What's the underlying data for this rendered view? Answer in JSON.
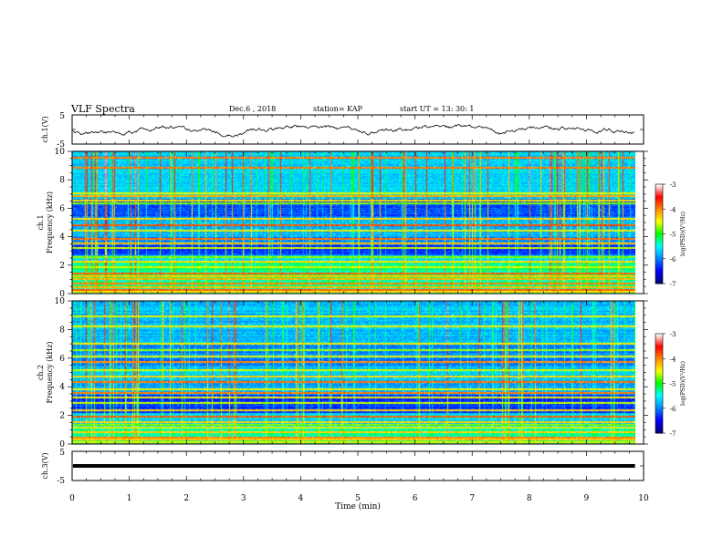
{
  "header": {
    "title": "VLF Spectra",
    "date": "Dec.6 , 2018",
    "station": "station= KAP",
    "start_ut": "start UT = 13: 30: 1"
  },
  "chart_data": [
    {
      "type": "line",
      "panel": "ch1-waveform",
      "ylabel": "ch.1(V)",
      "ylim": [
        -5,
        5
      ],
      "yticks": [
        "5",
        "-5"
      ],
      "xlim": [
        0,
        10
      ],
      "trace": "noisy low-amplitude waveform fluctuating around 0 V, range approx -2.5 to 3.5 V, data ending near 9.85 min"
    },
    {
      "type": "heatmap",
      "panel": "ch1-spectrogram",
      "ylabel_line1": "ch.1",
      "ylabel_line2": "Frequency (kHz)",
      "ylim": [
        0,
        10
      ],
      "yticks": [
        "0",
        "2",
        "4",
        "6",
        "8",
        "10"
      ],
      "xlim": [
        0,
        10
      ],
      "colorbar": {
        "label": "log(PSD)(V²/Hz)",
        "range": [
          -7,
          -3
        ],
        "ticks": [
          "-3",
          "-4",
          "-5",
          "-6",
          "-7"
        ]
      }
    },
    {
      "type": "heatmap",
      "panel": "ch2-spectrogram",
      "ylabel_line1": "ch.2",
      "ylabel_line2": "Frequency (kHz)",
      "ylim": [
        0,
        10
      ],
      "yticks": [
        "0",
        "2",
        "4",
        "6",
        "8",
        "10"
      ],
      "xlim": [
        0,
        10
      ],
      "colorbar": {
        "label": "log(PSD)(V²/Hz)",
        "range": [
          -7,
          -3
        ],
        "ticks": [
          "-3",
          "-4",
          "-5",
          "-6",
          "-7"
        ]
      }
    },
    {
      "type": "line",
      "panel": "ch3-waveform",
      "ylabel": "ch.3(V)",
      "ylim": [
        -5,
        5
      ],
      "yticks": [
        "5",
        "-5"
      ],
      "xlim": [
        0,
        10
      ],
      "trace": "thick flat line at about 0 V up to ~9.85 min"
    }
  ],
  "x_axis": {
    "label": "Time (min)",
    "ticks": [
      "0",
      "1",
      "2",
      "3",
      "4",
      "5",
      "6",
      "7",
      "8",
      "9",
      "10"
    ]
  },
  "colors": {
    "colormap": [
      "#00007a",
      "#0000ff",
      "#0088ff",
      "#00ffff",
      "#00ff00",
      "#ffff00",
      "#ff8800",
      "#ff0000",
      "#ffffff"
    ]
  }
}
